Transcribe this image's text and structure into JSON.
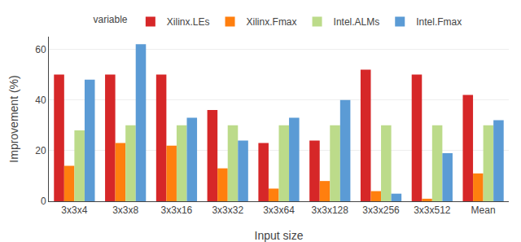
{
  "chart_data": {
    "type": "bar",
    "xlabel": "Input size",
    "ylabel": "Improvement (%)",
    "categories": [
      "3x3x4",
      "3x3x8",
      "3x3x16",
      "3x3x32",
      "3x3x64",
      "3x3x128",
      "3x3x256",
      "3x3x512",
      "Mean"
    ],
    "series": [
      {
        "name": "Xilinx.LEs",
        "color": "#d62728",
        "values": [
          50,
          50,
          50,
          36,
          23,
          24,
          52,
          50,
          42
        ]
      },
      {
        "name": "Xilinx.Fmax",
        "color": "#ff7f0e",
        "values": [
          14,
          23,
          22,
          13,
          5,
          8,
          4,
          1,
          11
        ]
      },
      {
        "name": "Intel.ALMs",
        "color": "#bcdb8a",
        "values": [
          28,
          30,
          30,
          30,
          30,
          30,
          30,
          30,
          30
        ]
      },
      {
        "name": "Intel.Fmax",
        "color": "#5b9bd5",
        "values": [
          48,
          62,
          33,
          24,
          33,
          40,
          3,
          19,
          32
        ]
      }
    ],
    "legend_title": "variable",
    "legend": "top",
    "ylim": [
      0,
      65
    ],
    "yticks": [
      0,
      20,
      40,
      60
    ],
    "grid": true
  }
}
